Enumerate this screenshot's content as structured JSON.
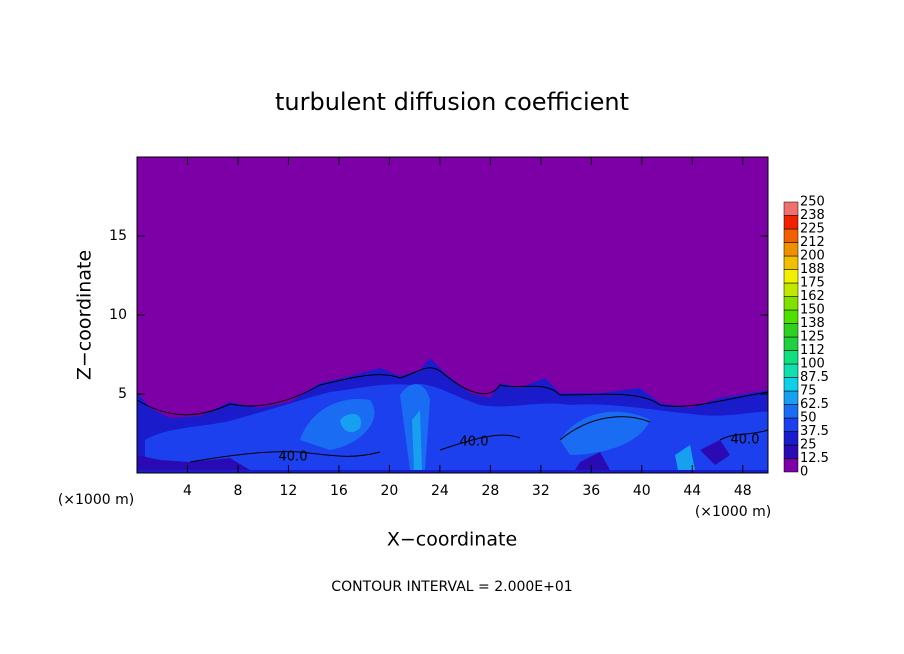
{
  "chart_data": {
    "type": "contour",
    "title": "turbulent diffusion coefficient",
    "xlabel": "X−coordinate",
    "ylabel": "Z−coordinate",
    "x_unit_labels": [
      "(×1000 m)",
      "(×1000 m)"
    ],
    "footer": "CONTOUR INTERVAL = 2.000E+01",
    "xlim": [
      0,
      50
    ],
    "ylim": [
      0,
      20
    ],
    "xticks": [
      4,
      8,
      12,
      16,
      20,
      24,
      28,
      32,
      36,
      40,
      44,
      48
    ],
    "yticks": [
      5,
      10,
      15
    ],
    "levels": [
      0,
      12.5,
      25,
      37.5,
      50,
      62.5,
      75,
      87.5,
      100,
      112,
      125,
      138,
      150,
      162,
      175,
      188,
      200,
      212,
      225,
      238,
      250
    ],
    "colors": [
      "#7c00a6",
      "#2a0ab2",
      "#1a1ccc",
      "#1c40ee",
      "#1a6cf2",
      "#18a0f0",
      "#10d0e8",
      "#10e0b0",
      "#10e080",
      "#20d040",
      "#30d020",
      "#50e000",
      "#80e000",
      "#c0e800",
      "#f0f000",
      "#f0c000",
      "#f09000",
      "#f06000",
      "#f02000",
      "#f07070"
    ],
    "contour_labels": [
      {
        "value": 40,
        "label": "40.0"
      },
      {
        "value": 40,
        "label": "40.0"
      },
      {
        "value": 40,
        "label": "40.0"
      }
    ]
  }
}
